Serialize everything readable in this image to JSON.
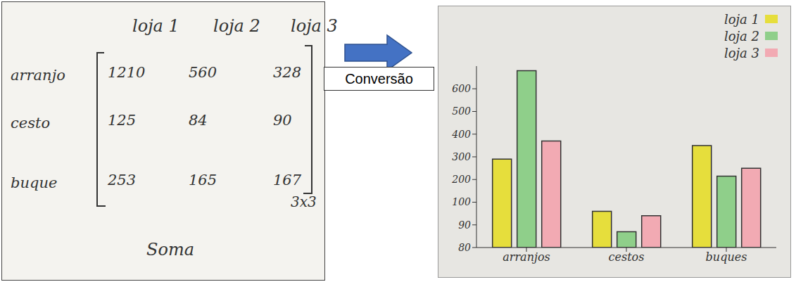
{
  "matrix": {
    "column_headers": [
      "loja 1",
      "loja 2",
      "loja 3"
    ],
    "rows": [
      {
        "label": "arranjo",
        "values": [
          1210,
          560,
          328
        ]
      },
      {
        "label": "cesto",
        "values": [
          125,
          84,
          90
        ]
      },
      {
        "label": "buque",
        "values": [
          253,
          165,
          167
        ]
      }
    ],
    "dimension": "3x3",
    "caption": "Soma"
  },
  "arrow": {
    "label": "Conversão"
  },
  "chart_data": {
    "type": "bar",
    "categories": [
      "arranjos",
      "cestos",
      "buques"
    ],
    "series": [
      {
        "name": "loja 1",
        "color": "#e6de3c",
        "values": [
          290,
          96,
          350
        ]
      },
      {
        "name": "loja 2",
        "color": "#8fcf8a",
        "values": [
          680,
          87,
          215
        ]
      },
      {
        "name": "loja 3",
        "color": "#f2aab3",
        "values": [
          370,
          94,
          250
        ]
      }
    ],
    "ylim": [
      80,
      700
    ],
    "yticks": [
      80,
      90,
      100,
      200,
      300,
      400,
      500,
      600
    ],
    "grid": false,
    "legend": "top-right"
  }
}
